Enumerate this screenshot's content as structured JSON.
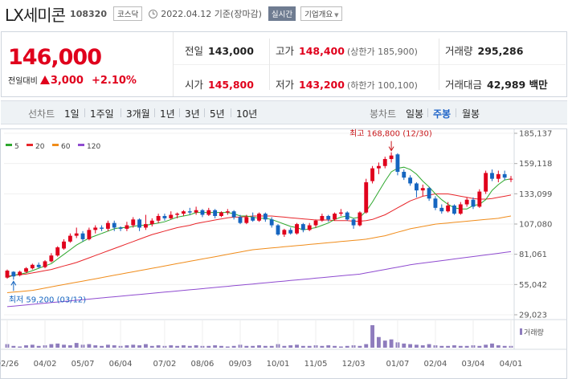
{
  "header": {
    "stock_name": "LX세미콘",
    "stock_code": "108320",
    "market": "코스닥",
    "date_text": "2022.04.12 기준(장마감)",
    "realtime_label": "실시간",
    "company_label": "기업개요"
  },
  "summary": {
    "price": "146,000",
    "change_label": "전일대비",
    "change_value": "3,000",
    "change_percent": "+2.10%",
    "prev_close_label": "전일",
    "prev_close": "143,000",
    "high_label": "고가",
    "high": "148,400",
    "upper_limit": "(상한가 185,900)",
    "volume_label": "거래량",
    "volume": "295,286",
    "open_label": "시가",
    "open": "145,800",
    "low_label": "저가",
    "low": "143,200",
    "lower_limit": "(하한가 100,100)",
    "trade_value_label": "거래대금",
    "trade_value": "42,989 백만"
  },
  "period_bar": {
    "line_label": "선차트",
    "line_periods": [
      "1일",
      "1주일",
      "3개월",
      "1년",
      "3년",
      "5년",
      "10년"
    ],
    "candle_label": "봉차트",
    "candle_periods": [
      "일봉",
      "주봉",
      "월봉"
    ],
    "active": "주봉"
  },
  "colors": {
    "up": "#e0001c",
    "down": "#1565c0",
    "ma5": "#2ea82e",
    "ma20": "#e8262b",
    "ma60": "#f08c1a",
    "ma120": "#8f4bd0",
    "volume": "#8e7cbd"
  },
  "chart_data": {
    "type": "candlestick",
    "legend": [
      {
        "name": "5",
        "color": "#2ea82e"
      },
      {
        "name": "20",
        "color": "#e8262b"
      },
      {
        "name": "60",
        "color": "#f08c1a"
      },
      {
        "name": "120",
        "color": "#8f4bd0"
      }
    ],
    "y_ticks": [
      "185,137",
      "159,118",
      "133,099",
      "107,080",
      "81,061",
      "55,042",
      "29,023"
    ],
    "y_range": [
      29023,
      185137
    ],
    "x_ticks": [
      "02/26",
      "04/02",
      "05/07",
      "06/04",
      "07/02",
      "08/06",
      "09/03",
      "10/01",
      "11/05",
      "12/03",
      "01/07",
      "02/04",
      "03/04",
      "04/01"
    ],
    "annotation_high": "최고 168,800 (12/30)",
    "annotation_low": "최저 59,200 (03/12)",
    "volume_label": "거래량",
    "candles": [
      {
        "o": 61000,
        "c": 67000,
        "h": 68000,
        "l": 60000
      },
      {
        "o": 66000,
        "c": 62000,
        "h": 66500,
        "l": 59200
      },
      {
        "o": 63000,
        "c": 66000,
        "h": 67000,
        "l": 62000
      },
      {
        "o": 66000,
        "c": 69000,
        "h": 70000,
        "l": 65000
      },
      {
        "o": 69000,
        "c": 72000,
        "h": 73000,
        "l": 68000
      },
      {
        "o": 72000,
        "c": 70000,
        "h": 74000,
        "l": 69000
      },
      {
        "o": 70000,
        "c": 75000,
        "h": 76000,
        "l": 69000
      },
      {
        "o": 75000,
        "c": 80000,
        "h": 82000,
        "l": 74000
      },
      {
        "o": 80000,
        "c": 87000,
        "h": 88000,
        "l": 79000
      },
      {
        "o": 86000,
        "c": 92000,
        "h": 94000,
        "l": 85000
      },
      {
        "o": 92000,
        "c": 97000,
        "h": 99000,
        "l": 91000
      },
      {
        "o": 97000,
        "c": 99000,
        "h": 104000,
        "l": 95000
      },
      {
        "o": 99000,
        "c": 94000,
        "h": 101000,
        "l": 92000
      },
      {
        "o": 94000,
        "c": 102000,
        "h": 104000,
        "l": 93000
      },
      {
        "o": 102000,
        "c": 104000,
        "h": 106000,
        "l": 99000
      },
      {
        "o": 104000,
        "c": 103000,
        "h": 106000,
        "l": 101000
      },
      {
        "o": 103000,
        "c": 108000,
        "h": 110000,
        "l": 101000
      },
      {
        "o": 108000,
        "c": 104000,
        "h": 110000,
        "l": 101000
      },
      {
        "o": 104000,
        "c": 103000,
        "h": 105000,
        "l": 101000
      },
      {
        "o": 103000,
        "c": 106000,
        "h": 109000,
        "l": 101000
      },
      {
        "o": 106000,
        "c": 111000,
        "h": 113000,
        "l": 104000
      },
      {
        "o": 111000,
        "c": 104000,
        "h": 112000,
        "l": 101000
      },
      {
        "o": 104000,
        "c": 107000,
        "h": 115000,
        "l": 102000
      },
      {
        "o": 107000,
        "c": 110000,
        "h": 112000,
        "l": 105000
      },
      {
        "o": 110000,
        "c": 114000,
        "h": 116000,
        "l": 108000
      },
      {
        "o": 114000,
        "c": 112000,
        "h": 116000,
        "l": 110000
      },
      {
        "o": 112000,
        "c": 115000,
        "h": 118000,
        "l": 111000
      },
      {
        "o": 115000,
        "c": 116000,
        "h": 117000,
        "l": 112000
      },
      {
        "o": 116000,
        "c": 118000,
        "h": 119000,
        "l": 114000
      },
      {
        "o": 118000,
        "c": 117000,
        "h": 121000,
        "l": 115000
      },
      {
        "o": 117000,
        "c": 119000,
        "h": 122000,
        "l": 115000
      },
      {
        "o": 119000,
        "c": 115000,
        "h": 120000,
        "l": 113000
      },
      {
        "o": 115000,
        "c": 119000,
        "h": 121000,
        "l": 114000
      },
      {
        "o": 119000,
        "c": 114000,
        "h": 120000,
        "l": 112000
      },
      {
        "o": 114000,
        "c": 117000,
        "h": 118000,
        "l": 113000
      },
      {
        "o": 117000,
        "c": 118000,
        "h": 120000,
        "l": 115000
      },
      {
        "o": 118000,
        "c": 113000,
        "h": 119000,
        "l": 111000
      },
      {
        "o": 113000,
        "c": 108000,
        "h": 115000,
        "l": 107000
      },
      {
        "o": 108000,
        "c": 113000,
        "h": 115000,
        "l": 107000
      },
      {
        "o": 113000,
        "c": 110000,
        "h": 117000,
        "l": 109000
      },
      {
        "o": 110000,
        "c": 116000,
        "h": 117000,
        "l": 109000
      },
      {
        "o": 116000,
        "c": 111000,
        "h": 117000,
        "l": 109000
      },
      {
        "o": 111000,
        "c": 106000,
        "h": 113000,
        "l": 104000
      },
      {
        "o": 106000,
        "c": 98000,
        "h": 107000,
        "l": 97000
      },
      {
        "o": 98000,
        "c": 102000,
        "h": 103000,
        "l": 96000
      },
      {
        "o": 102000,
        "c": 99000,
        "h": 104000,
        "l": 98000
      },
      {
        "o": 99000,
        "c": 107000,
        "h": 108000,
        "l": 98000
      },
      {
        "o": 107000,
        "c": 102000,
        "h": 108000,
        "l": 100000
      },
      {
        "o": 102000,
        "c": 106000,
        "h": 108000,
        "l": 101000
      },
      {
        "o": 106000,
        "c": 110000,
        "h": 111000,
        "l": 104000
      },
      {
        "o": 110000,
        "c": 114000,
        "h": 116000,
        "l": 109000
      },
      {
        "o": 114000,
        "c": 111000,
        "h": 115000,
        "l": 109000
      },
      {
        "o": 111000,
        "c": 116000,
        "h": 117000,
        "l": 110000
      },
      {
        "o": 116000,
        "c": 117000,
        "h": 120000,
        "l": 114000
      },
      {
        "o": 117000,
        "c": 111000,
        "h": 118000,
        "l": 110000
      },
      {
        "o": 111000,
        "c": 106000,
        "h": 112000,
        "l": 103000
      },
      {
        "o": 106000,
        "c": 117000,
        "h": 118000,
        "l": 105000
      },
      {
        "o": 117000,
        "c": 143000,
        "h": 146000,
        "l": 116000
      },
      {
        "o": 144000,
        "c": 155000,
        "h": 157000,
        "l": 142000
      },
      {
        "o": 155000,
        "c": 157000,
        "h": 160000,
        "l": 150000
      },
      {
        "o": 157000,
        "c": 163000,
        "h": 165000,
        "l": 155000
      },
      {
        "o": 163000,
        "c": 166000,
        "h": 168800,
        "l": 160000
      },
      {
        "o": 167000,
        "c": 152000,
        "h": 168000,
        "l": 149000
      },
      {
        "o": 152000,
        "c": 147000,
        "h": 154000,
        "l": 145000
      },
      {
        "o": 147000,
        "c": 142000,
        "h": 149000,
        "l": 140000
      },
      {
        "o": 142000,
        "c": 136000,
        "h": 143000,
        "l": 130000
      },
      {
        "o": 136000,
        "c": 138000,
        "h": 141000,
        "l": 131000
      },
      {
        "o": 138000,
        "c": 129000,
        "h": 139000,
        "l": 127000
      },
      {
        "o": 129000,
        "c": 121000,
        "h": 131000,
        "l": 119000
      },
      {
        "o": 121000,
        "c": 118000,
        "h": 124000,
        "l": 116000
      },
      {
        "o": 118000,
        "c": 123000,
        "h": 126000,
        "l": 117000
      },
      {
        "o": 123000,
        "c": 116000,
        "h": 124000,
        "l": 115000
      },
      {
        "o": 116000,
        "c": 124000,
        "h": 126000,
        "l": 115000
      },
      {
        "o": 124000,
        "c": 128000,
        "h": 130000,
        "l": 122000
      },
      {
        "o": 128000,
        "c": 122000,
        "h": 130000,
        "l": 120000
      },
      {
        "o": 122000,
        "c": 135000,
        "h": 137000,
        "l": 121000
      },
      {
        "o": 135000,
        "c": 151000,
        "h": 153000,
        "l": 133000
      },
      {
        "o": 151000,
        "c": 146000,
        "h": 154000,
        "l": 144000
      },
      {
        "o": 146000,
        "c": 150000,
        "h": 153000,
        "l": 143000
      },
      {
        "o": 150000,
        "c": 147000,
        "h": 153000,
        "l": 145000
      },
      {
        "o": 145800,
        "c": 146000,
        "h": 148400,
        "l": 143200
      }
    ],
    "ma5": [
      61000,
      63000,
      64000,
      65000,
      67000,
      69000,
      71000,
      73000,
      77000,
      81000,
      85000,
      89000,
      92000,
      95000,
      97000,
      99000,
      101000,
      103000,
      104000,
      104000,
      105000,
      106000,
      106000,
      107000,
      108000,
      109000,
      111000,
      113000,
      114000,
      115000,
      117000,
      117000,
      117000,
      117000,
      117000,
      117000,
      116000,
      114000,
      114000,
      113000,
      112000,
      112000,
      111000,
      109000,
      107000,
      105000,
      104000,
      102000,
      103000,
      104000,
      106000,
      108000,
      111000,
      113000,
      114000,
      112000,
      113000,
      118000,
      126000,
      135000,
      144000,
      152000,
      155000,
      156000,
      154000,
      150000,
      144000,
      139000,
      133000,
      128000,
      124000,
      121000,
      120000,
      120000,
      123000,
      124000,
      128000,
      136000,
      141000,
      145000,
      146000
    ],
    "ma20": [
      62000,
      63000,
      63500,
      64000,
      65000,
      66000,
      67000,
      68000,
      69500,
      71000,
      72500,
      74000,
      76000,
      78000,
      80000,
      82000,
      84000,
      86000,
      88000,
      90000,
      92000,
      94000,
      96000,
      98000,
      99500,
      101000,
      102500,
      104000,
      105000,
      106000,
      107500,
      108500,
      109500,
      110500,
      111500,
      112500,
      113000,
      113000,
      113500,
      114000,
      114000,
      114000,
      114000,
      113500,
      113000,
      112500,
      112000,
      111500,
      111000,
      110500,
      110500,
      110500,
      110000,
      110000,
      110000,
      109500,
      109500,
      110000,
      111000,
      113000,
      115000,
      118000,
      121000,
      124000,
      127000,
      129000,
      131000,
      132000,
      133000,
      133000,
      133000,
      132000,
      131000,
      130000,
      129000,
      128500,
      128500,
      129000,
      130000,
      131000,
      132000
    ],
    "ma60": [
      48000,
      48500,
      49000,
      49500,
      50000,
      51000,
      52000,
      53000,
      54000,
      55000,
      56000,
      57000,
      58000,
      59000,
      60000,
      61000,
      62000,
      63000,
      64000,
      65000,
      66000,
      67000,
      68000,
      69000,
      70000,
      71000,
      72000,
      73000,
      74000,
      75000,
      76000,
      77000,
      78000,
      79000,
      80000,
      81000,
      82000,
      83000,
      84000,
      85000,
      85500,
      86000,
      86500,
      87000,
      87500,
      88000,
      88500,
      89000,
      89500,
      90000,
      90500,
      91000,
      91500,
      92000,
      92500,
      93000,
      93500,
      94000,
      95000,
      96000,
      97000,
      98500,
      100000,
      101500,
      103000,
      104000,
      105000,
      106000,
      107000,
      107500,
      108000,
      108500,
      109000,
      109500,
      110000,
      110500,
      111000,
      111500,
      112000,
      113000,
      114000
    ],
    "ma120": [
      36000,
      36500,
      37000,
      37500,
      38000,
      38500,
      39000,
      39500,
      40000,
      40500,
      41000,
      41500,
      42000,
      42500,
      43000,
      43500,
      44000,
      44500,
      45000,
      45500,
      46000,
      46500,
      47000,
      47500,
      48000,
      48500,
      49000,
      49500,
      50000,
      50500,
      51000,
      51500,
      52000,
      52500,
      53000,
      53500,
      54000,
      54500,
      55000,
      55500,
      56000,
      56500,
      57000,
      57500,
      58000,
      58500,
      59000,
      59500,
      60000,
      60500,
      61000,
      61500,
      62000,
      62500,
      63000,
      63500,
      64000,
      65000,
      66000,
      67000,
      68000,
      69000,
      70000,
      71000,
      72000,
      72800,
      73500,
      74200,
      74900,
      75600,
      76300,
      77000,
      77700,
      78400,
      79100,
      79800,
      80500,
      81200,
      81900,
      82600,
      83300
    ],
    "volumes": [
      6,
      3,
      2,
      4,
      5,
      3,
      4,
      6,
      7,
      5,
      4,
      8,
      5,
      6,
      4,
      3,
      5,
      4,
      3,
      4,
      5,
      4,
      6,
      3,
      4,
      3,
      4,
      3,
      4,
      3,
      4,
      3,
      3,
      4,
      3,
      2,
      3,
      5,
      3,
      3,
      4,
      3,
      3,
      6,
      3,
      4,
      5,
      3,
      3,
      4,
      3,
      4,
      3,
      2,
      3,
      4,
      3,
      6,
      38,
      18,
      12,
      14,
      9,
      7,
      6,
      5,
      4,
      6,
      4,
      3,
      3,
      4,
      3,
      3,
      4,
      3,
      5,
      7,
      4,
      3,
      3
    ]
  }
}
